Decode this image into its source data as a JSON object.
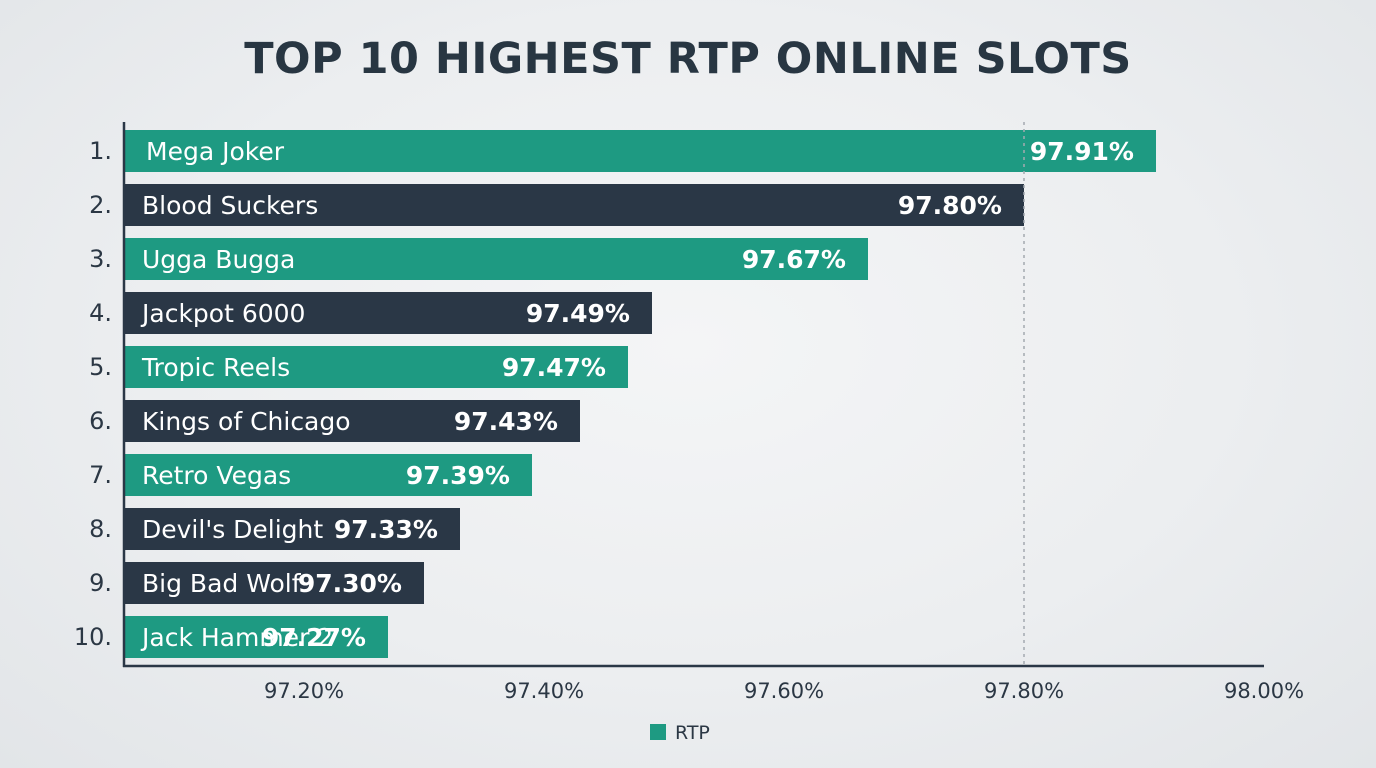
{
  "chart_data": {
    "type": "bar",
    "orientation": "horizontal",
    "title": "TOP 10 HIGHEST RTP ONLINE SLOTS",
    "ranks": [
      "1.",
      "2.",
      "3.",
      "4.",
      "5.",
      "6.",
      "7.",
      "8.",
      "9.",
      "10."
    ],
    "categories": [
      "Mega Joker",
      "Blood Suckers",
      "Ugga Bugga",
      "Jackpot 6000",
      "Tropic Reels",
      "Kings of Chicago",
      "Retro Vegas",
      "Devil's Delight",
      "Big Bad Wolf",
      "Jack Hammer 2"
    ],
    "values": [
      97.91,
      97.8,
      97.67,
      97.49,
      97.47,
      97.43,
      97.39,
      97.33,
      97.3,
      97.27
    ],
    "value_labels": [
      "97.91%",
      "97.80%",
      "97.67%",
      "97.49%",
      "97.47%",
      "97.43%",
      "97.39%",
      "97.33%",
      "97.30%",
      "97.27%"
    ],
    "xlim": [
      97.05,
      98.0
    ],
    "xticks": [
      97.2,
      97.4,
      97.6,
      97.8,
      98.0
    ],
    "xtick_labels": [
      "97.20%",
      "97.40%",
      "97.60%",
      "97.80%",
      "98.00%"
    ],
    "reference_line": 97.8,
    "grid": false,
    "legend": {
      "label": "RTP",
      "position": "bottom-center"
    },
    "colors": {
      "teal": "#1e9a82",
      "navy": "#2a3746",
      "axis": "#2a3746",
      "text": "#2b3744",
      "reference": "#a3a9b0"
    }
  }
}
